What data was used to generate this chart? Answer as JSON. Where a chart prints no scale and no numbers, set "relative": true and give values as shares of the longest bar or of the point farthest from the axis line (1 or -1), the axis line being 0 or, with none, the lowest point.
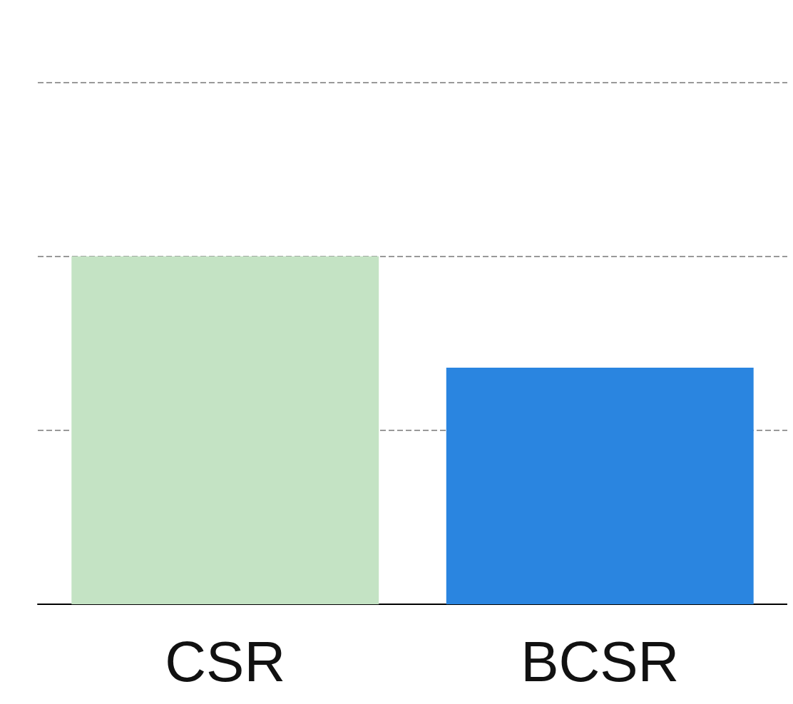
{
  "chart_data": {
    "type": "bar",
    "relative": true,
    "categories": [
      "CSR",
      "BCSR"
    ],
    "values": [
      1,
      0.68
    ],
    "colors": [
      "#c4e3c4",
      "#2a85e0"
    ],
    "ref_lines": [
      {
        "axis": "y",
        "value": 0.5,
        "color": "#999999",
        "line_style": "dashed"
      },
      {
        "axis": "y",
        "value": 1,
        "color": "#999999",
        "line_style": "dashed"
      },
      {
        "axis": "y",
        "value": 1.5,
        "color": "#999999",
        "line_style": "dashed"
      }
    ]
  }
}
